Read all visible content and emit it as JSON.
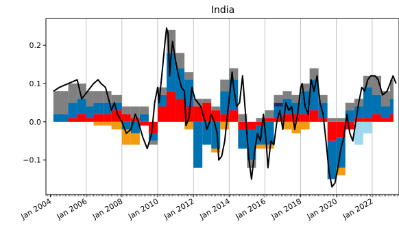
{
  "chart_data": {
    "type": "bar",
    "title": "India",
    "xlabel": "",
    "ylabel": "",
    "x_range": [
      "2003-10",
      "2023-07"
    ],
    "ylim": [
      -0.19,
      0.27
    ],
    "x_tick_labels": [
      "Jan 2004",
      "Jan 2006",
      "Jan 2008",
      "Jan 2010",
      "Jan 2012",
      "Jan 2014",
      "Jan 2016",
      "Jan 2018",
      "Jan 2020",
      "Jan 2022"
    ],
    "y_ticks": [
      0.2,
      0.1,
      0.0,
      -0.1
    ],
    "y_tick_labels": [
      "0.2",
      "0.1",
      "0.0",
      "−0.1"
    ],
    "grid": "vertical at yearly ticks",
    "stacked": true,
    "line_series_color": "#000000",
    "series_colors": {
      "gray": "#808080",
      "blue": "#0072b2",
      "red": "#ff0000",
      "orange": "#f39c12",
      "lightblue": "#9ed8ef",
      "navy": "#1f2a6b"
    },
    "line_series": [
      [
        "2004-03",
        0.08
      ],
      [
        "2004-07",
        0.09
      ],
      [
        "2005-01",
        0.1
      ],
      [
        "2005-07",
        0.11
      ],
      [
        "2005-10",
        0.06
      ],
      [
        "2006-02",
        0.08
      ],
      [
        "2006-06",
        0.1
      ],
      [
        "2006-09",
        0.11
      ],
      [
        "2006-11",
        0.1
      ],
      [
        "2007-02",
        0.09
      ],
      [
        "2007-04",
        0.06
      ],
      [
        "2007-06",
        0.03
      ],
      [
        "2007-08",
        0.05
      ],
      [
        "2007-10",
        0.02
      ],
      [
        "2008-01",
        0.0
      ],
      [
        "2008-04",
        -0.03
      ],
      [
        "2008-07",
        -0.02
      ],
      [
        "2008-10",
        0.02
      ],
      [
        "2008-12",
        0.0
      ],
      [
        "2009-03",
        -0.04
      ],
      [
        "2009-06",
        -0.07
      ],
      [
        "2009-09",
        -0.03
      ],
      [
        "2009-11",
        0.05
      ],
      [
        "2010-01",
        0.09
      ],
      [
        "2010-02",
        0.05
      ],
      [
        "2010-04",
        0.13
      ],
      [
        "2010-06",
        0.21
      ],
      [
        "2010-07",
        0.245
      ],
      [
        "2010-08",
        0.23
      ],
      [
        "2010-09",
        0.12
      ],
      [
        "2010-10",
        0.17
      ],
      [
        "2010-11",
        0.21
      ],
      [
        "2011-01",
        0.16
      ],
      [
        "2011-03",
        0.12
      ],
      [
        "2011-05",
        0.09
      ],
      [
        "2011-07",
        0.08
      ],
      [
        "2011-08",
        -0.01
      ],
      [
        "2011-10",
        0.01
      ],
      [
        "2011-12",
        0.09
      ],
      [
        "2012-02",
        0.06
      ],
      [
        "2012-04",
        0.05
      ],
      [
        "2012-06",
        0.04
      ],
      [
        "2012-08",
        0.01
      ],
      [
        "2012-09",
        0.0
      ],
      [
        "2012-10",
        -0.02
      ],
      [
        "2012-12",
        0.0
      ],
      [
        "2013-01",
        0.02
      ],
      [
        "2013-03",
        0.0
      ],
      [
        "2013-05",
        -0.03
      ],
      [
        "2013-06",
        -0.1
      ],
      [
        "2013-08",
        -0.09
      ],
      [
        "2013-10",
        -0.05
      ],
      [
        "2014-01",
        0.06
      ],
      [
        "2014-03",
        0.13
      ],
      [
        "2014-04",
        0.09
      ],
      [
        "2014-06",
        0.04
      ],
      [
        "2014-08",
        0.05
      ],
      [
        "2014-10",
        0.12
      ],
      [
        "2014-12",
        0.02
      ],
      [
        "2015-02",
        -0.09
      ],
      [
        "2015-04",
        -0.15
      ],
      [
        "2015-06",
        -0.08
      ],
      [
        "2015-08",
        -0.03
      ],
      [
        "2015-10",
        -0.05
      ],
      [
        "2015-12",
        0.02
      ],
      [
        "2016-02",
        -0.06
      ],
      [
        "2016-03",
        -0.12
      ],
      [
        "2016-05",
        -0.05
      ],
      [
        "2016-07",
        -0.06
      ],
      [
        "2016-09",
        0.0
      ],
      [
        "2016-11",
        0.03
      ],
      [
        "2017-01",
        -0.02
      ],
      [
        "2017-03",
        0.05
      ],
      [
        "2017-05",
        0.03
      ],
      [
        "2017-07",
        0.04
      ],
      [
        "2017-09",
        -0.02
      ],
      [
        "2017-11",
        0.02
      ],
      [
        "2018-01",
        0.09
      ],
      [
        "2018-02",
        0.1
      ],
      [
        "2018-04",
        0.04
      ],
      [
        "2018-06",
        0.02
      ],
      [
        "2018-08",
        0.11
      ],
      [
        "2018-10",
        0.08
      ],
      [
        "2018-12",
        0.12
      ],
      [
        "2019-02",
        0.05
      ],
      [
        "2019-04",
        0.02
      ],
      [
        "2019-06",
        -0.05
      ],
      [
        "2019-08",
        -0.13
      ],
      [
        "2019-10",
        -0.17
      ],
      [
        "2019-12",
        -0.16
      ],
      [
        "2020-02",
        -0.12
      ],
      [
        "2020-04",
        -0.07
      ],
      [
        "2020-06",
        -0.04
      ],
      [
        "2020-08",
        0.02
      ],
      [
        "2020-10",
        -0.03
      ],
      [
        "2020-12",
        -0.05
      ],
      [
        "2021-02",
        0.0
      ],
      [
        "2021-04",
        0.05
      ],
      [
        "2021-06",
        0.09
      ],
      [
        "2021-08",
        0.08
      ],
      [
        "2021-10",
        0.11
      ],
      [
        "2021-12",
        0.12
      ],
      [
        "2022-03",
        0.12
      ],
      [
        "2022-05",
        0.11
      ],
      [
        "2022-08",
        0.07
      ],
      [
        "2022-11",
        0.08
      ],
      [
        "2023-01",
        0.1
      ],
      [
        "2023-03",
        0.12
      ],
      [
        "2023-05",
        0.1
      ]
    ],
    "bar_series": [
      {
        "x": "2004-03",
        "gray": 0.06,
        "blue": 0.02
      },
      {
        "x": "2005-01",
        "gray": 0.05,
        "blue": 0.04,
        "red": 0.01
      },
      {
        "x": "2005-07",
        "gray": 0.04,
        "blue": 0.04,
        "red": 0.02
      },
      {
        "x": "2006-01",
        "gray": 0.04,
        "blue": 0.03,
        "red": 0.01
      },
      {
        "x": "2006-06",
        "gray": 0.03,
        "blue": 0.03,
        "red": 0.02,
        "orange": -0.01
      },
      {
        "x": "2007-01",
        "gray": 0.03,
        "blue": 0.03,
        "red": 0.02,
        "orange": -0.01
      },
      {
        "x": "2007-06",
        "gray": 0.02,
        "blue": 0.02,
        "red": 0.03,
        "orange": -0.02
      },
      {
        "x": "2008-01",
        "gray": 0.02,
        "blue": -0.02,
        "red": 0.02,
        "orange": -0.04
      },
      {
        "x": "2008-07",
        "gray": 0.03,
        "blue": -0.03,
        "red": 0.01,
        "orange": -0.03
      },
      {
        "x": "2009-01",
        "gray": 0.02,
        "blue": 0.02,
        "red": -0.01
      },
      {
        "x": "2009-07",
        "gray": -0.01,
        "blue": -0.02,
        "red": -0.03
      },
      {
        "x": "2010-01",
        "gray": 0.02,
        "blue": 0.03,
        "red": 0.04
      },
      {
        "x": "2010-07",
        "gray": 0.06,
        "blue": 0.1,
        "red": 0.08
      },
      {
        "x": "2011-01",
        "gray": 0.04,
        "blue": 0.08,
        "red": 0.06
      },
      {
        "x": "2011-07",
        "gray": 0.02,
        "blue": 0.07,
        "red": 0.04,
        "orange": -0.02
      },
      {
        "x": "2012-01",
        "gray": 0.02,
        "blue": -0.12,
        "red": 0.04
      },
      {
        "x": "2012-07",
        "gray": 0.01,
        "blue": -0.06,
        "red": 0.05
      },
      {
        "x": "2013-01",
        "gray": 0.01,
        "blue": -0.07,
        "red": 0.03,
        "orange": -0.01
      },
      {
        "x": "2013-07",
        "gray": 0.03,
        "blue": 0.06,
        "red": 0.02,
        "orange": -0.02
      },
      {
        "x": "2014-01",
        "gray": 0.03,
        "blue": 0.08,
        "red": 0.03
      },
      {
        "x": "2014-07",
        "gray": 0.02,
        "blue": -0.05,
        "red": -0.02
      },
      {
        "x": "2015-01",
        "gray": -0.02,
        "blue": -0.08,
        "red": -0.02
      },
      {
        "x": "2015-07",
        "gray": 0.01,
        "blue": -0.05,
        "red": -0.01,
        "orange": -0.01
      },
      {
        "x": "2016-01",
        "gray": 0.02,
        "blue": -0.06,
        "red": 0.01,
        "orange": -0.01
      },
      {
        "x": "2016-07",
        "gray": 0.02,
        "blue": 0.03,
        "red": 0.01,
        "navy": 0.01
      },
      {
        "x": "2017-01",
        "gray": 0.02,
        "blue": 0.04,
        "red": 0.02,
        "orange": -0.02
      },
      {
        "x": "2017-07",
        "gray": 0.02,
        "blue": 0.03,
        "red": 0.02,
        "orange": -0.03
      },
      {
        "x": "2018-01",
        "gray": 0.02,
        "blue": 0.06,
        "red": 0.02,
        "orange": -0.02
      },
      {
        "x": "2018-07",
        "gray": 0.03,
        "blue": 0.08,
        "red": 0.03
      },
      {
        "x": "2019-01",
        "gray": 0.02,
        "blue": 0.04,
        "red": 0.01
      },
      {
        "x": "2019-07",
        "gray": 0.01,
        "blue": -0.1,
        "red": -0.05
      },
      {
        "x": "2020-01",
        "gray": 0.01,
        "blue": -0.08,
        "red": -0.04,
        "orange": -0.02
      },
      {
        "x": "2020-07",
        "gray": 0.02,
        "blue": 0.03,
        "red": -0.02
      },
      {
        "x": "2021-01",
        "gray": 0.02,
        "blue": 0.03,
        "red": 0.01,
        "lightblue": -0.06
      },
      {
        "x": "2021-07",
        "gray": 0.03,
        "blue": 0.08,
        "red": 0.01,
        "lightblue": -0.03
      },
      {
        "x": "2022-01",
        "gray": 0.05,
        "blue": 0.05,
        "red": 0.02
      },
      {
        "x": "2022-07",
        "gray": 0.04,
        "blue": 0.03,
        "red": 0.01
      },
      {
        "x": "2023-01",
        "gray": 0.05,
        "blue": 0.04,
        "red": 0.02
      }
    ]
  }
}
